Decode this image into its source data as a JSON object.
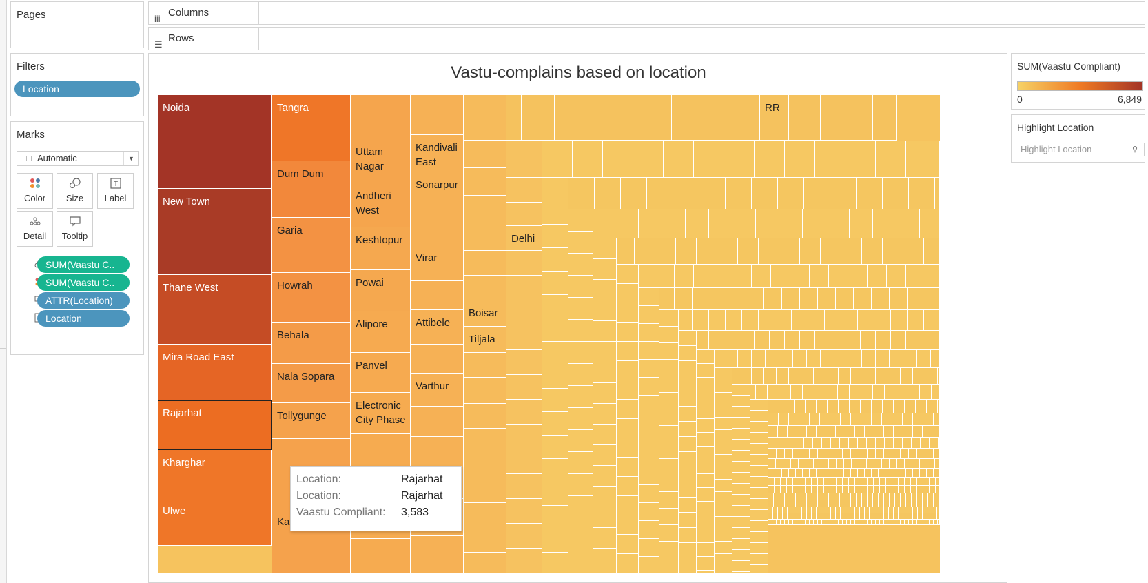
{
  "pages": {
    "title": "Pages"
  },
  "shelves": {
    "columns_label": "Columns",
    "rows_label": "Rows"
  },
  "filters": {
    "title": "Filters",
    "pill": "Location"
  },
  "marks": {
    "title": "Marks",
    "type": "Automatic",
    "buttons": {
      "color": "Color",
      "size": "Size",
      "label": "Label",
      "detail": "Detail",
      "tooltip": "Tooltip"
    },
    "pills": [
      {
        "icon": "size-icon",
        "text": "SUM(Vaastu C..",
        "kind": "green"
      },
      {
        "icon": "color-icon",
        "text": "SUM(Vaastu C..",
        "kind": "green"
      },
      {
        "icon": "tooltip-icon",
        "text": "ATTR(Location)",
        "kind": "blue"
      },
      {
        "icon": "label-icon",
        "text": "Location",
        "kind": "blue"
      }
    ]
  },
  "view": {
    "title": "Vastu-complains based on location"
  },
  "legend": {
    "title": "SUM(Vaastu Compliant)",
    "min_label": "0",
    "max_label": "6,849",
    "color_low": "#f6d266",
    "color_mid": "#ef7a24",
    "color_high": "#a33426"
  },
  "highlight": {
    "title": "Highlight Location",
    "placeholder": "Highlight Location"
  },
  "tooltip": {
    "rows": [
      {
        "key": "Location:",
        "value": "Rajarhat"
      },
      {
        "key": "Location:",
        "value": "Rajarhat"
      },
      {
        "key": "Vaastu Compliant:",
        "value": "3,583"
      }
    ]
  },
  "chart_data": {
    "type": "treemap",
    "title": "Vastu-complains based on location",
    "color_measure": "SUM(Vaastu Compliant)",
    "color_range": [
      0,
      6849
    ],
    "labeled_locations": [
      {
        "name": "Noida",
        "color": "#a33426"
      },
      {
        "name": "New Town",
        "color": "#a93b26"
      },
      {
        "name": "Thane West",
        "color": "#c54c25"
      },
      {
        "name": "Mira Road East",
        "color": "#e56525"
      },
      {
        "name": "Rajarhat",
        "color": "#ec6d22",
        "value": 3583
      },
      {
        "name": "Kharghar",
        "color": "#ef7628"
      },
      {
        "name": "Ulwe",
        "color": "#ef7628"
      },
      {
        "name": "Tangra",
        "color": "#ef7628"
      },
      {
        "name": "Dum Dum",
        "color": "#f2883b"
      },
      {
        "name": "Garia",
        "color": "#f39243"
      },
      {
        "name": "Howrah",
        "color": "#f39243"
      },
      {
        "name": "Behala",
        "color": "#f49b48"
      },
      {
        "name": "Nala Sopara",
        "color": "#f49b48"
      },
      {
        "name": "Tollygunge",
        "color": "#f5a24c"
      },
      {
        "name": "Kalyan West",
        "color": "#f5a24c"
      },
      {
        "name": "Uttam Nagar",
        "color": "#f5a54d"
      },
      {
        "name": "Andheri West",
        "color": "#f5a54d"
      },
      {
        "name": "Keshtopur",
        "color": "#f5a84f"
      },
      {
        "name": "Powai",
        "color": "#f5a84f"
      },
      {
        "name": "Alipore",
        "color": "#f6aa50"
      },
      {
        "name": "Panvel",
        "color": "#f6aa50"
      },
      {
        "name": "Electronic City Phase",
        "color": "#f6ab50"
      },
      {
        "name": "Kandivali East",
        "color": "#f6b155"
      },
      {
        "name": "Sonarpur",
        "color": "#f6b155"
      },
      {
        "name": "Virar",
        "color": "#f6b155"
      },
      {
        "name": "Attibele",
        "color": "#f6b155"
      },
      {
        "name": "Varthur",
        "color": "#f6b155"
      },
      {
        "name": "Boisar",
        "color": "#f6bb5b"
      },
      {
        "name": "Tiljala",
        "color": "#f6bb5b"
      },
      {
        "name": "Delhi",
        "color": "#f6c260"
      },
      {
        "name": "RR",
        "color": "#f5c25e"
      }
    ]
  }
}
